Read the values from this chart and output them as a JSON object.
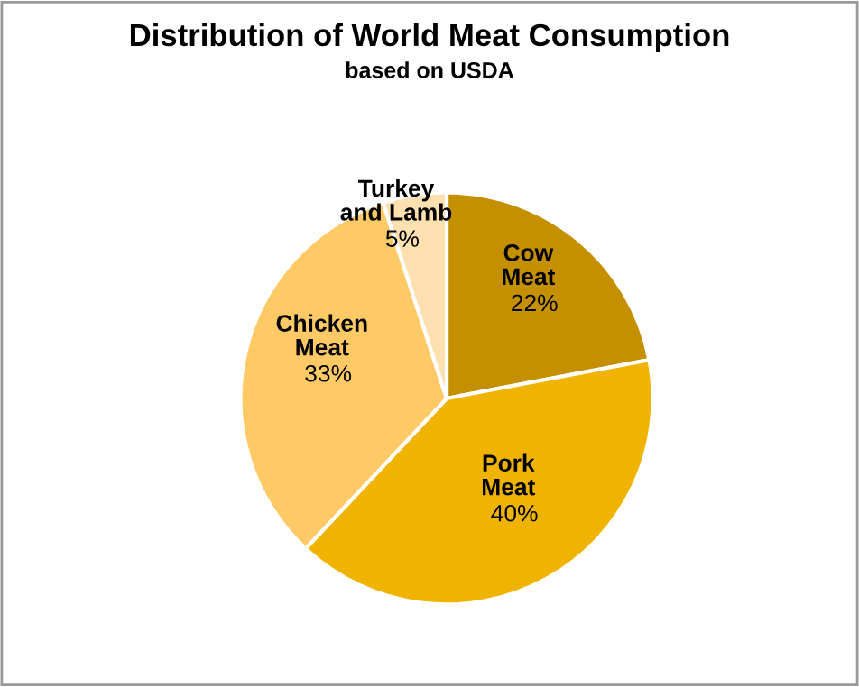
{
  "chart_data": {
    "type": "pie",
    "title": "Distribution of World Meat Consumption",
    "subtitle": "based on USDA",
    "categories": [
      "Cow\nMeat",
      "Pork\nMeat",
      "Chicken\nMeat",
      "Turkey\nand Lamb"
    ],
    "values": [
      22,
      40,
      33,
      5
    ],
    "colors": [
      "#c49000",
      "#f0b400",
      "#ffc966",
      "#fde0b0"
    ],
    "value_labels": [
      "22%",
      "40%",
      "33%",
      "5%"
    ]
  }
}
